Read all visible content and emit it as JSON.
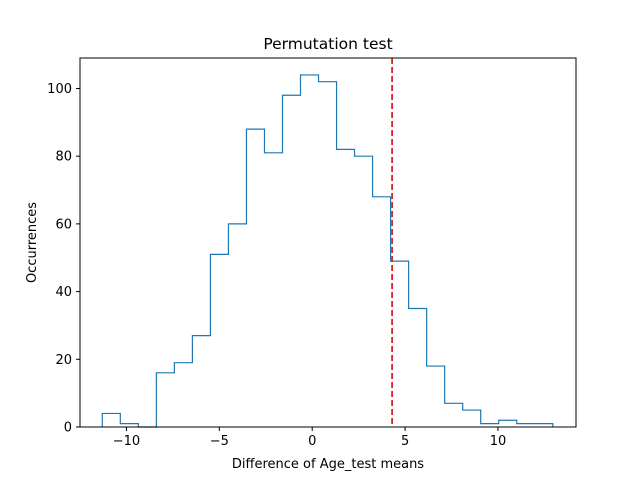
{
  "chart_data": {
    "type": "histogram",
    "title": "Permutation test",
    "xlabel": "Difference of Age_test means",
    "ylabel": "Occurrences",
    "xlim": [
      -12.5,
      14.2
    ],
    "ylim": [
      0,
      109
    ],
    "xticks": [
      -10,
      -5,
      0,
      5,
      10
    ],
    "yticks": [
      0,
      20,
      40,
      60,
      80,
      100
    ],
    "bin_edges": [
      -11.3,
      -10.33,
      -9.36,
      -8.39,
      -7.42,
      -6.45,
      -5.48,
      -4.51,
      -3.54,
      -2.57,
      -1.6,
      -0.63,
      0.34,
      1.31,
      2.28,
      3.25,
      4.22,
      5.19,
      6.16,
      7.13,
      8.1,
      9.07,
      10.04,
      11.01,
      11.98,
      12.95
    ],
    "counts": [
      4,
      1,
      0,
      16,
      19,
      27,
      51,
      60,
      88,
      81,
      98,
      104,
      102,
      82,
      80,
      68,
      49,
      35,
      18,
      7,
      5,
      1,
      2,
      1,
      1
    ],
    "observed_value": 4.3,
    "colors": {
      "histogram": "#1f77b4",
      "observed_line": "#d62728"
    },
    "grid": false,
    "legend": "none"
  }
}
